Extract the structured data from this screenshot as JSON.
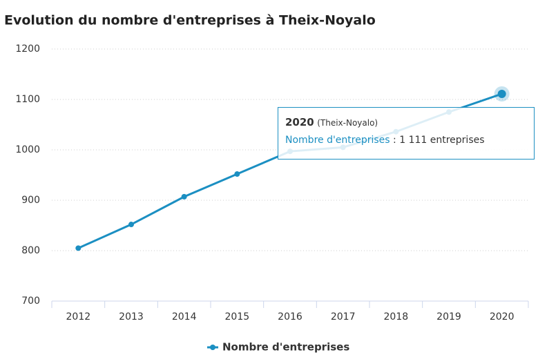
{
  "chart_data": {
    "type": "line",
    "title": "Evolution du nombre d'entreprises à Theix-Noyalo",
    "categories": [
      "2012",
      "2013",
      "2014",
      "2015",
      "2016",
      "2017",
      "2018",
      "2019",
      "2020"
    ],
    "series": [
      {
        "name": "Nombre d'entreprises",
        "color": "#1b8fc2",
        "values": [
          805,
          852,
          907,
          952,
          997,
          1005,
          1036,
          1075,
          1111
        ]
      }
    ],
    "ylim": [
      700,
      1200
    ],
    "yticks": [
      700,
      800,
      900,
      1000,
      1100,
      1200
    ],
    "grid": true,
    "legend": "bottom",
    "tooltip": {
      "title": "2020",
      "subtitle": "(Theix-Noyalo)",
      "label": "Nombre d'entreprises",
      "separator": ":",
      "value_label": "1 111 entreprises"
    }
  }
}
